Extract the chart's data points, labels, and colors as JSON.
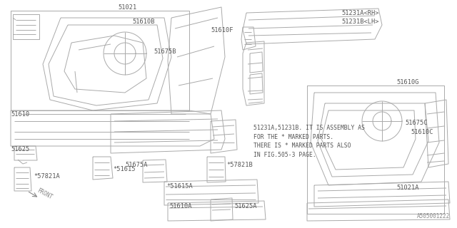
{
  "bg_color": "#ffffff",
  "line_color": "#aaaaaa",
  "text_color": "#555555",
  "fig_width": 6.4,
  "fig_height": 3.2,
  "dpi": 100,
  "bottom_right_code": "A505001222",
  "note_text": "51231A,51231B. IT IS ASSEMBLY AS\nFOR THE * MARKED PARTS.\nTHERE IS * MARKED PARTS ALSO\nIN FIG.505-3 PAGE.",
  "front_label": "FRONT"
}
